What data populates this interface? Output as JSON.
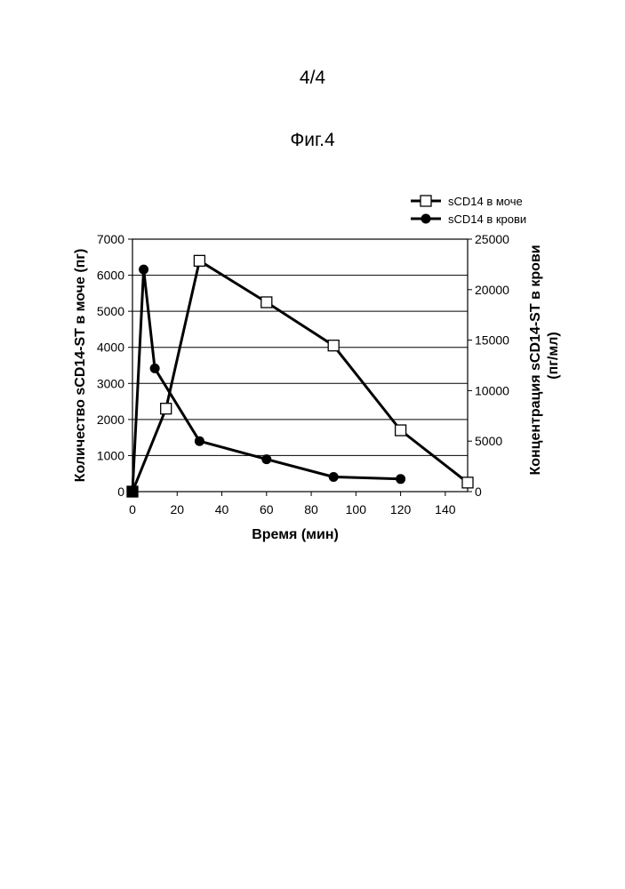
{
  "page": {
    "number": "4/4",
    "figure": "Фиг.4"
  },
  "chart_data": {
    "type": "line",
    "xlabel": "Время (мин)",
    "ylabel_left": "Количество sCD14-ST в моче (пг)",
    "ylabel_right_line1": "Концентрация sCD14-ST в крови",
    "ylabel_right_line2": "(пг/мл)",
    "xlim": [
      0,
      150
    ],
    "xticks": [
      0,
      20,
      40,
      60,
      80,
      100,
      120,
      140
    ],
    "ylim_left": [
      0,
      7000
    ],
    "yticks_left": [
      0,
      1000,
      2000,
      3000,
      4000,
      5000,
      6000,
      7000
    ],
    "ylim_right": [
      0,
      25000
    ],
    "yticks_right": [
      0,
      5000,
      10000,
      15000,
      20000,
      25000
    ],
    "grid": "horizontal",
    "legend_position": "top-right",
    "series": [
      {
        "name": "sCD14 в моче",
        "axis": "left",
        "marker": "open-square",
        "x": [
          0,
          15,
          30,
          60,
          90,
          120,
          150
        ],
        "y": [
          0,
          2300,
          6400,
          5250,
          4050,
          1700,
          250
        ]
      },
      {
        "name": "sCD14 в крови",
        "axis": "right",
        "marker": "filled-circle",
        "x": [
          0,
          5,
          10,
          30,
          60,
          90,
          120
        ],
        "y": [
          0,
          22000,
          12200,
          5000,
          3200,
          1450,
          1250
        ]
      }
    ]
  }
}
